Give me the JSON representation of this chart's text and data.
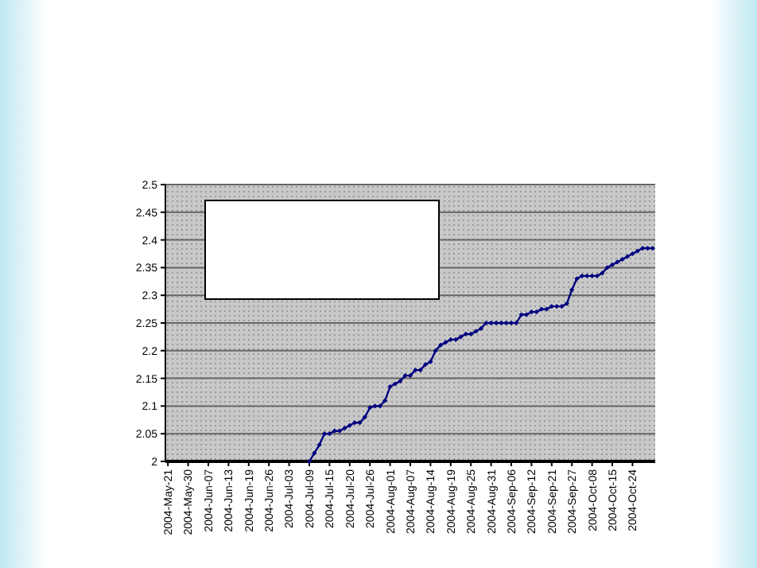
{
  "chart_data": {
    "type": "line",
    "categories": [
      "2004-May-21",
      null,
      null,
      null,
      "2004-May-30",
      null,
      null,
      null,
      "2004-Jun-07",
      null,
      null,
      null,
      "2004-Jun-13",
      null,
      null,
      null,
      "2004-Jun-19",
      null,
      null,
      null,
      "2004-Jun-26",
      null,
      null,
      null,
      "2004-Jul-03",
      null,
      null,
      null,
      "2004-Jul-09",
      null,
      null,
      null,
      "2004-Jul-15",
      null,
      null,
      null,
      "2004-Jul-20",
      null,
      null,
      null,
      "2004-Jul-26",
      null,
      null,
      null,
      "2004-Aug-01",
      null,
      null,
      null,
      "2004-Aug-07",
      null,
      null,
      null,
      "2004-Aug-14",
      null,
      null,
      null,
      "2004-Aug-19",
      null,
      null,
      null,
      "2004-Aug-25",
      null,
      null,
      null,
      "2004-Aug-31",
      null,
      null,
      null,
      "2004-Sep-06",
      null,
      null,
      null,
      "2004-Sep-12",
      null,
      null,
      null,
      "2004-Sep-21",
      null,
      null,
      null,
      "2004-Sep-27",
      null,
      null,
      null,
      "2004-Oct-08",
      null,
      null,
      null,
      "2004-Oct-15",
      null,
      null,
      null,
      "2004-Oct-24",
      null,
      null,
      null,
      null
    ],
    "series": [
      {
        "color": "#000080",
        "values": [
          null,
          null,
          null,
          null,
          null,
          null,
          null,
          null,
          null,
          null,
          null,
          null,
          null,
          null,
          null,
          null,
          null,
          null,
          null,
          null,
          null,
          null,
          null,
          null,
          null,
          null,
          null,
          null,
          2.0,
          2.015,
          2.03,
          2.05,
          2.05,
          2.055,
          2.055,
          2.06,
          2.065,
          2.07,
          2.07,
          2.08,
          2.097,
          2.1,
          2.1,
          2.11,
          2.135,
          2.14,
          2.145,
          2.155,
          2.155,
          2.165,
          2.165,
          2.175,
          2.18,
          2.2,
          2.21,
          2.215,
          2.22,
          2.22,
          2.225,
          2.23,
          2.23,
          2.235,
          2.24,
          2.25,
          2.25,
          2.25,
          2.25,
          2.25,
          2.25,
          2.25,
          2.265,
          2.265,
          2.27,
          2.27,
          2.275,
          2.275,
          2.28,
          2.28,
          2.28,
          2.285,
          2.31,
          2.33,
          2.335,
          2.335,
          2.335,
          2.335,
          2.34,
          2.35,
          2.355,
          2.36,
          2.365,
          2.37,
          2.375,
          2.38,
          2.385,
          2.385,
          2.385
        ]
      }
    ],
    "ylim": [
      2,
      2.5
    ],
    "yticks": [
      2,
      2.05,
      2.1,
      2.15,
      2.2,
      2.25,
      2.3,
      2.35,
      2.4,
      2.45,
      2.5
    ],
    "grid": "y",
    "marker": "diamond",
    "line_style": "solid"
  }
}
